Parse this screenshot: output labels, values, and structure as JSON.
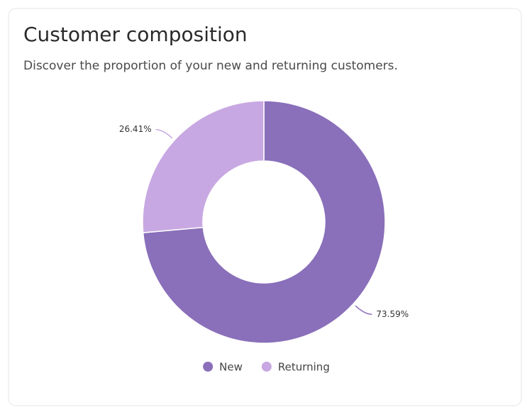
{
  "chart_data": {
    "type": "donut",
    "title": "Customer composition",
    "subtitle": "Discover the proportion of your new and returning customers.",
    "categories": [
      "New",
      "Returning"
    ],
    "values": [
      73.59,
      26.41
    ],
    "value_labels": [
      "73.59%",
      "26.41%"
    ],
    "colors": [
      "#8a6fba",
      "#c8a8e2"
    ],
    "legend": "bottom"
  }
}
